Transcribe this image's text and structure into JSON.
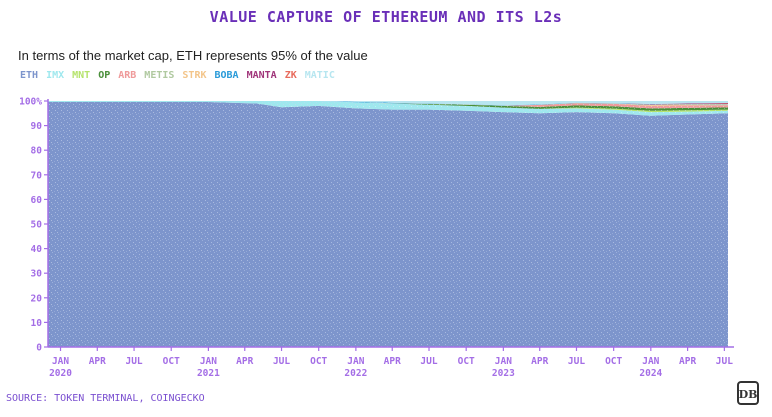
{
  "title": "VALUE CAPTURE OF ETHEREUM AND ITS L2s",
  "subtitle": "In terms of the market cap, ETH represents 95% of the value",
  "source": "SOURCE: TOKEN TERMINAL, COINGECKO",
  "logo": "DB",
  "colors": {
    "title": "#6a2fb8",
    "axis": "#a46ee6",
    "eth": "#7d95cc",
    "noise": "#c9d6f2"
  },
  "chart_data": {
    "type": "area",
    "stacked": true,
    "ylim": [
      0,
      100
    ],
    "y_ticks": [
      {
        "v": 0,
        "label": "0"
      },
      {
        "v": 10,
        "label": "10"
      },
      {
        "v": 20,
        "label": "20"
      },
      {
        "v": 30,
        "label": "30"
      },
      {
        "v": 40,
        "label": "40"
      },
      {
        "v": 50,
        "label": "50"
      },
      {
        "v": 60,
        "label": "60"
      },
      {
        "v": 70,
        "label": "70"
      },
      {
        "v": 80,
        "label": "80"
      },
      {
        "v": 90,
        "label": "90"
      },
      {
        "v": 100,
        "label": "100%"
      }
    ],
    "x_range": [
      "2019-12-01",
      "2024-07-10"
    ],
    "x_ticks": [
      {
        "date": "2020-01-01",
        "label": "JAN",
        "year": "2020"
      },
      {
        "date": "2020-04-01",
        "label": "APR",
        "year": ""
      },
      {
        "date": "2020-07-01",
        "label": "JUL",
        "year": ""
      },
      {
        "date": "2020-10-01",
        "label": "OCT",
        "year": ""
      },
      {
        "date": "2021-01-01",
        "label": "JAN",
        "year": "2021"
      },
      {
        "date": "2021-04-01",
        "label": "APR",
        "year": ""
      },
      {
        "date": "2021-07-01",
        "label": "JUL",
        "year": ""
      },
      {
        "date": "2021-10-01",
        "label": "OCT",
        "year": ""
      },
      {
        "date": "2022-01-01",
        "label": "JAN",
        "year": "2022"
      },
      {
        "date": "2022-04-01",
        "label": "APR",
        "year": ""
      },
      {
        "date": "2022-07-01",
        "label": "JUL",
        "year": ""
      },
      {
        "date": "2022-10-01",
        "label": "OCT",
        "year": ""
      },
      {
        "date": "2023-01-01",
        "label": "JAN",
        "year": "2023"
      },
      {
        "date": "2023-04-01",
        "label": "APR",
        "year": ""
      },
      {
        "date": "2023-07-01",
        "label": "JUL",
        "year": ""
      },
      {
        "date": "2023-10-01",
        "label": "OCT",
        "year": ""
      },
      {
        "date": "2024-01-01",
        "label": "JAN",
        "year": "2024"
      },
      {
        "date": "2024-04-01",
        "label": "APR",
        "year": ""
      },
      {
        "date": "2024-07-01",
        "label": "JUL",
        "year": ""
      }
    ],
    "x": [
      "2019-12-01",
      "2020-06-01",
      "2021-01-01",
      "2021-05-01",
      "2021-07-01",
      "2021-10-01",
      "2022-01-01",
      "2022-04-01",
      "2022-07-01",
      "2022-10-01",
      "2023-01-01",
      "2023-04-01",
      "2023-07-01",
      "2023-10-01",
      "2024-01-01",
      "2024-04-01",
      "2024-07-10"
    ],
    "series": [
      {
        "name": "ETH",
        "color": "#7d95cc",
        "values": [
          99.6,
          99.6,
          99.6,
          99.0,
          97.5,
          98.0,
          97.0,
          96.5,
          96.5,
          96.0,
          95.5,
          95.0,
          95.5,
          95.0,
          94.0,
          94.5,
          95.0
        ]
      },
      {
        "name": "IMX",
        "color": "#9fe8ee",
        "values": [
          0.4,
          0.4,
          0.4,
          1.0,
          2.5,
          2.0,
          2.5,
          2.5,
          2.0,
          2.0,
          1.8,
          1.8,
          1.5,
          1.5,
          1.5,
          1.2,
          1.0
        ]
      },
      {
        "name": "MNT",
        "color": "#b5e36b",
        "values": [
          0,
          0,
          0,
          0,
          0,
          0,
          0,
          0,
          0,
          0,
          0,
          0,
          0.3,
          0.4,
          0.5,
          0.5,
          0.5
        ]
      },
      {
        "name": "OP",
        "color": "#4a8f3a",
        "values": [
          0,
          0,
          0,
          0,
          0,
          0,
          0,
          0,
          0.3,
          0.5,
          0.7,
          0.8,
          0.9,
          1.0,
          1.0,
          1.0,
          0.9
        ]
      },
      {
        "name": "ARB",
        "color": "#ef9a9a",
        "values": [
          0,
          0,
          0,
          0,
          0,
          0,
          0,
          0,
          0,
          0,
          0,
          0.8,
          0.9,
          1.0,
          1.0,
          1.0,
          0.9
        ]
      },
      {
        "name": "METIS",
        "color": "#b0c9a0",
        "values": [
          0,
          0,
          0,
          0,
          0,
          0,
          0,
          0.1,
          0.1,
          0.1,
          0.1,
          0.1,
          0.1,
          0.1,
          0.1,
          0.1,
          0.1
        ]
      },
      {
        "name": "STRK",
        "color": "#f3c58a",
        "values": [
          0,
          0,
          0,
          0,
          0,
          0,
          0,
          0,
          0,
          0,
          0,
          0,
          0,
          0,
          0.4,
          0.4,
          0.3
        ]
      },
      {
        "name": "BOBA",
        "color": "#2a9bd9",
        "values": [
          0,
          0,
          0,
          0,
          0,
          0,
          0.2,
          0.2,
          0.1,
          0.1,
          0.1,
          0.1,
          0.1,
          0.1,
          0.1,
          0.1,
          0.1
        ]
      },
      {
        "name": "MANTA",
        "color": "#a0357a",
        "values": [
          0,
          0,
          0,
          0,
          0,
          0,
          0,
          0,
          0,
          0,
          0,
          0,
          0,
          0,
          0.2,
          0.2,
          0.2
        ]
      },
      {
        "name": "ZK",
        "color": "#e86b5c",
        "values": [
          0,
          0,
          0,
          0,
          0,
          0,
          0,
          0,
          0,
          0,
          0,
          0,
          0,
          0,
          0,
          0,
          0.2
        ]
      },
      {
        "name": "MATIC",
        "color": "#b7e6f0",
        "values": [
          0,
          0,
          0,
          0,
          0,
          0,
          0.3,
          0.7,
          1.0,
          1.3,
          1.8,
          1.4,
          0.7,
          0.9,
          1.2,
          1.0,
          0.8
        ]
      }
    ]
  }
}
